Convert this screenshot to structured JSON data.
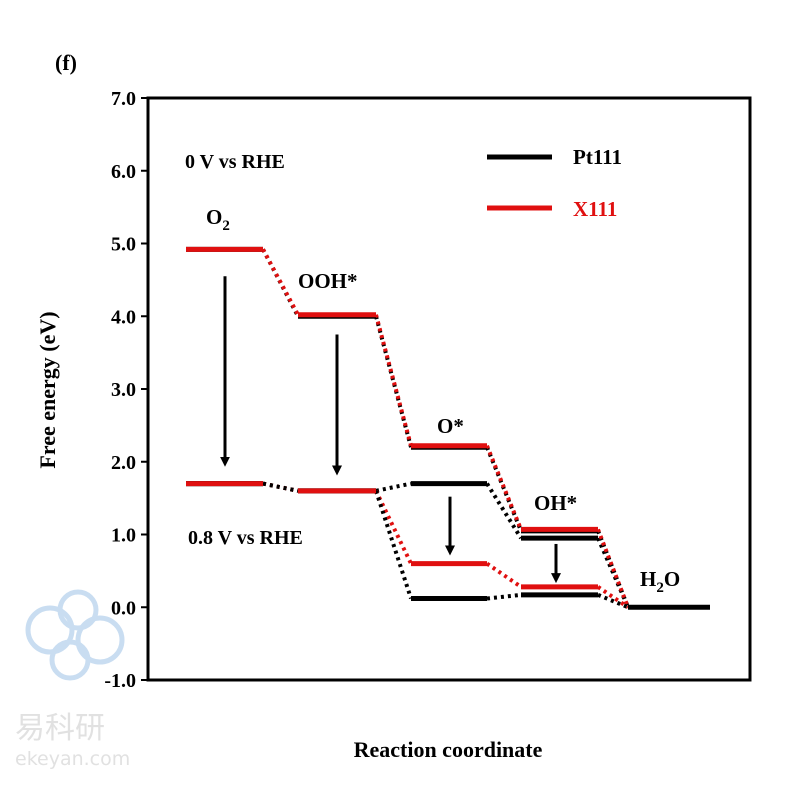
{
  "panel_label": "(f)",
  "chart_data": {
    "type": "line",
    "title": "",
    "xlabel": "Reaction coordinate",
    "ylabel": "Free energy (eV)",
    "ylim": [
      -1.0,
      7.0
    ],
    "yticks": [
      "7.0",
      "6.0",
      "5.0",
      "4.0",
      "3.0",
      "2.0",
      "1.0",
      "0.0",
      "-1.0"
    ],
    "grid": false,
    "legend_position": "top-right",
    "steps": [
      "O2",
      "OOH*",
      "O*",
      "OH*",
      "H2O"
    ],
    "series": [
      {
        "name": "Pt111",
        "color": "#000000",
        "potential": "0.8 V vs RHE",
        "values": [
          1.7,
          1.6,
          1.7,
          0.95,
          0.0
        ]
      },
      {
        "name": "Pt111",
        "color": "#000000",
        "potential": "0 V vs RHE",
        "values": [
          4.92,
          4.0,
          2.2,
          1.05,
          0.0
        ]
      },
      {
        "name": "X111",
        "color": "#e01010",
        "potential": "0 V vs RHE",
        "values": [
          4.92,
          4.02,
          2.22,
          1.07,
          0.0
        ]
      },
      {
        "name": "X111",
        "color": "#e01010",
        "potential": "0.8 V vs RHE",
        "values": [
          1.7,
          1.6,
          0.6,
          0.28,
          0.0
        ]
      },
      {
        "name": "Pt111",
        "color": "#000000",
        "potential": "0.8 V vs RHE",
        "values": [
          1.7,
          1.6,
          0.12,
          0.17,
          0.0
        ]
      }
    ],
    "annotations": {
      "potential_top": "0 V vs RHE",
      "potential_bottom": "0.8 V vs RHE",
      "state_labels": [
        "O",
        "OOH*",
        "O*",
        "OH*",
        "H",
        "O"
      ],
      "subscript_2": "2"
    },
    "legend": [
      {
        "label": "Pt111",
        "color": "#000000"
      },
      {
        "label": "X111",
        "color": "#e01010"
      }
    ]
  },
  "watermark": {
    "chinese": "易科研",
    "url": "ekeyan.com"
  }
}
